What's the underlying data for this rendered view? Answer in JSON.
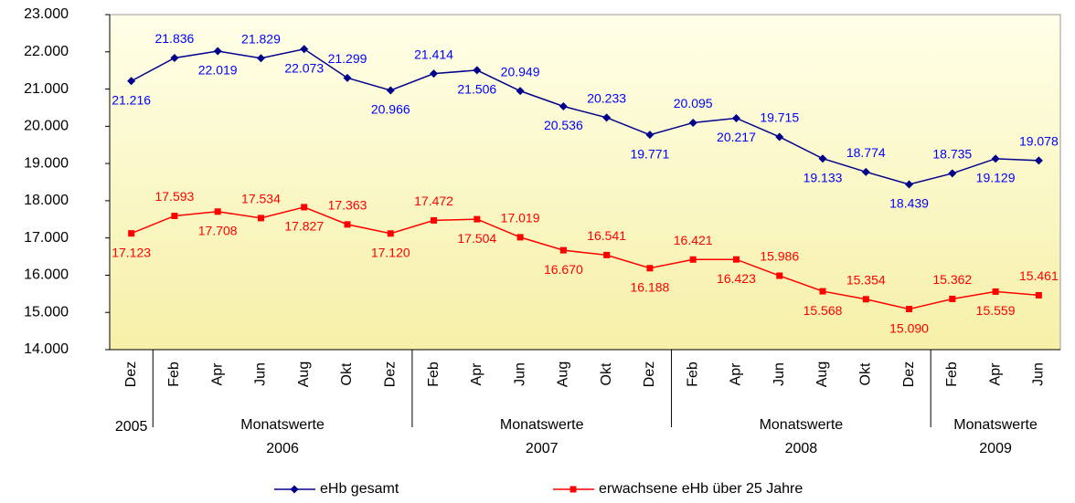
{
  "chart_data": {
    "type": "line",
    "groups": [
      {
        "label": [
          "2005"
        ],
        "categories": [
          "Dez"
        ]
      },
      {
        "label": [
          "Monatswerte",
          "2006"
        ],
        "categories": [
          "Feb",
          "Apr",
          "Jun",
          "Aug",
          "Okt",
          "Dez"
        ]
      },
      {
        "label": [
          "Monatswerte",
          "2007"
        ],
        "categories": [
          "Feb",
          "Apr",
          "Jun",
          "Aug",
          "Okt",
          "Dez"
        ]
      },
      {
        "label": [
          "Monatswerte",
          "2008"
        ],
        "categories": [
          "Feb",
          "Apr",
          "Jun",
          "Aug",
          "Okt",
          "Dez"
        ]
      },
      {
        "label": [
          "Monatswerte",
          "2009"
        ],
        "categories": [
          "Feb",
          "Apr",
          "Jun"
        ]
      }
    ],
    "series": [
      {
        "name": "eHb gesamt",
        "color": "#00008b",
        "marker": "diamond",
        "values": [
          21216,
          21836,
          22019,
          21829,
          22073,
          21299,
          20966,
          21414,
          21506,
          20949,
          20536,
          20233,
          19771,
          20095,
          20217,
          19715,
          19133,
          18774,
          18439,
          18735,
          19129,
          19078
        ],
        "value_labels": [
          "21.216",
          "21.836",
          "22.019",
          "21.829",
          "22.073",
          "21.299",
          "20.966",
          "21.414",
          "21.506",
          "20.949",
          "20.536",
          "20.233",
          "19.771",
          "20.095",
          "20.217",
          "19.715",
          "19.133",
          "18.774",
          "18.439",
          "18.735",
          "19.129",
          "19.078"
        ],
        "label_color": "#0000ff"
      },
      {
        "name": "erwachsene eHb über 25 Jahre",
        "color": "#ff0000",
        "marker": "square",
        "values": [
          17123,
          17593,
          17708,
          17534,
          17827,
          17363,
          17120,
          17472,
          17504,
          17019,
          16670,
          16541,
          16188,
          16421,
          16423,
          15986,
          15568,
          15354,
          15090,
          15362,
          15559,
          15461
        ],
        "value_labels": [
          "17.123",
          "17.593",
          "17.708",
          "17.534",
          "17.827",
          "17.363",
          "17.120",
          "17.472",
          "17.504",
          "17.019",
          "16.670",
          "16.541",
          "16.188",
          "16.421",
          "16.423",
          "15.986",
          "15.568",
          "15.354",
          "15.090",
          "15.362",
          "15.559",
          "15.461"
        ],
        "label_color": "#ff0000"
      }
    ],
    "ylim": [
      14000,
      23000
    ],
    "yticks": [
      {
        "value": 14000,
        "label": "14.000"
      },
      {
        "value": 15000,
        "label": "15.000"
      },
      {
        "value": 16000,
        "label": "16.000"
      },
      {
        "value": 17000,
        "label": "17.000"
      },
      {
        "value": 18000,
        "label": "18.000"
      },
      {
        "value": 19000,
        "label": "19.000"
      },
      {
        "value": 20000,
        "label": "20.000"
      },
      {
        "value": 21000,
        "label": "21.000"
      },
      {
        "value": 22000,
        "label": "22.000"
      },
      {
        "value": 23000,
        "label": "23.000"
      }
    ],
    "grid": false,
    "legend": "bottom"
  }
}
